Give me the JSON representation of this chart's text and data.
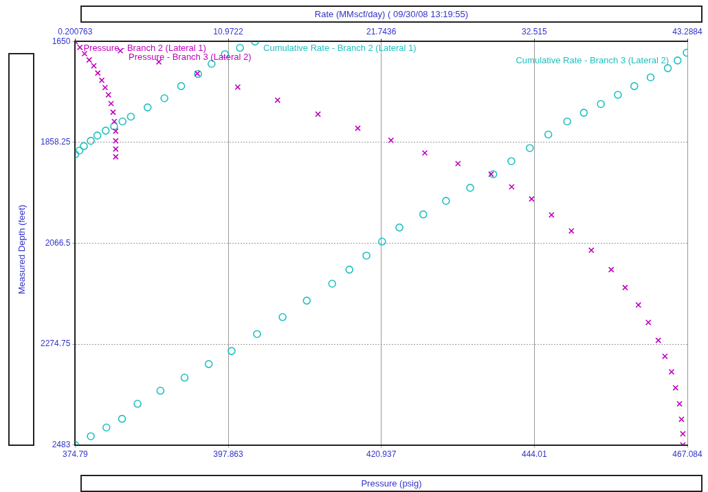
{
  "chart_data": {
    "type": "scatter",
    "xlabel": "Pressure  (psig)",
    "x2label": "Rate  (MMscf/day) ( 09/30/08 13:19:55)",
    "ylabel": "Measured Depth  (feet)",
    "xlim": [
      374.79,
      467.084
    ],
    "xticks": [
      374.79,
      397.863,
      420.937,
      444.01,
      467.084
    ],
    "x2lim": [
      0.200763,
      43.2884
    ],
    "x2ticks": [
      0.200763,
      10.9722,
      21.7436,
      32.515,
      43.2884
    ],
    "ylim": [
      2483,
      1650
    ],
    "yticks": [
      1650,
      1858.25,
      2066.5,
      2274.75,
      2483
    ],
    "grid": true,
    "legend": false,
    "series": [
      {
        "name": "Pressure - Branch 2 (Lateral 1)",
        "color": "#c000c0",
        "marker": "cross",
        "x": [
          374.79,
          375.5,
          376.2,
          376.9,
          377.6,
          378.2,
          378.8,
          379.3,
          379.8,
          380.2,
          380.5,
          380.7,
          380.9,
          380.9,
          380.9,
          380.9
        ],
        "values": [
          1650,
          1662,
          1675,
          1688,
          1700,
          1715,
          1730,
          1745,
          1760,
          1778,
          1796,
          1815,
          1835,
          1855,
          1872,
          1888
        ]
      },
      {
        "name": "Pressure - Branch 3 (Lateral 2)",
        "color": "#c000c0",
        "marker": "cross",
        "x": [
          381.6,
          387.4,
          393.2,
          399.3,
          405.3,
          411.4,
          417.4,
          422.4,
          427.5,
          432.5,
          437.5,
          440.6,
          443.6,
          446.6,
          449.6,
          452.6,
          455.6,
          457.7,
          459.7,
          461.2,
          462.7,
          463.7,
          464.7,
          465.3,
          465.9,
          466.2,
          466.4,
          466.4
        ],
        "values": [
          1669,
          1692,
          1716,
          1744,
          1771,
          1800,
          1829,
          1854,
          1880,
          1902,
          1924,
          1950,
          1975,
          2008,
          2041,
          2081,
          2121,
          2158,
          2194,
          2230,
          2267,
          2300,
          2332,
          2365,
          2398,
          2430,
          2460,
          2483
        ]
      },
      {
        "name": "Cumulative Rate - Branch 2 (Lateral 1)",
        "color": "#20c0c0",
        "marker": "circle",
        "axis": "x2",
        "x": [
          0.200763,
          0.5,
          0.81,
          1.3,
          1.76,
          2.35,
          2.94,
          3.53,
          4.12,
          5.3,
          6.48,
          7.66,
          8.85,
          9.8,
          10.74,
          11.8,
          12.86
        ],
        "values": [
          1883,
          1875,
          1866,
          1855,
          1844,
          1834,
          1825,
          1815,
          1805,
          1786,
          1767,
          1742,
          1717,
          1696,
          1676,
          1663,
          1650
        ]
      },
      {
        "name": "Cumulative Rate - Branch 3 (Lateral 2)",
        "color": "#20c0c0",
        "marker": "circle",
        "axis": "x2",
        "x": [
          0.200763,
          1.3,
          2.4,
          3.5,
          4.59,
          6.2,
          7.9,
          9.6,
          11.21,
          13.0,
          14.8,
          16.5,
          18.29,
          19.5,
          20.7,
          21.8,
          23.02,
          24.7,
          26.3,
          28.0,
          29.63,
          30.9,
          32.2,
          33.5,
          34.83,
          36.0,
          37.2,
          38.4,
          39.55,
          40.7,
          41.91,
          42.6,
          43.24
        ],
        "values": [
          2483,
          2465,
          2447,
          2429,
          2398,
          2371,
          2344,
          2316,
          2289,
          2254,
          2219,
          2185,
          2150,
          2121,
          2092,
          2063,
          2034,
          2007,
          1979,
          1952,
          1924,
          1897,
          1870,
          1842,
          1815,
          1797,
          1779,
          1760,
          1742,
          1724,
          1705,
          1689,
          1673
        ]
      }
    ]
  }
}
